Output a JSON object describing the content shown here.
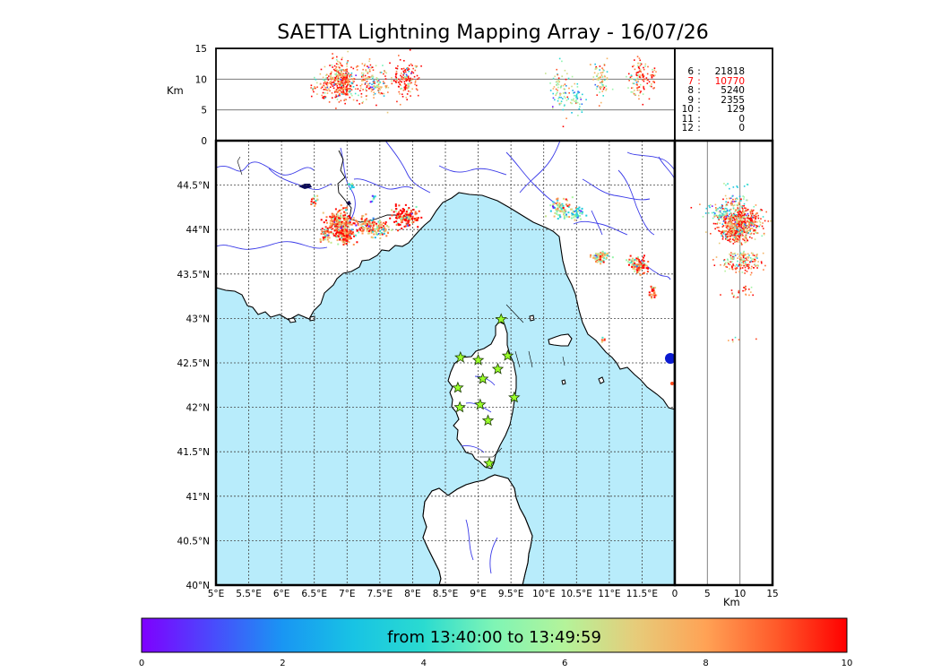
{
  "title": "SAETTA Lightning Mapping Array - 16/07/26",
  "altitude_panel": {
    "unit_label": "Km",
    "y_ticks": [
      "0",
      "5",
      "10",
      "15"
    ],
    "reference_lines_km": [
      5,
      10
    ]
  },
  "map": {
    "lon_ticks": [
      "5°E",
      "5.5°E",
      "6°E",
      "6.5°E",
      "7°E",
      "7.5°E",
      "8°E",
      "8.5°E",
      "9°E",
      "9.5°E",
      "10°E",
      "10.5°E",
      "11°E",
      "11.5°E"
    ],
    "lat_ticks": [
      "40°N",
      "40.5°N",
      "41°N",
      "41.5°N",
      "42°N",
      "42.5°N",
      "43°N",
      "43.5°N",
      "44°N",
      "44.5°N"
    ],
    "extent": {
      "lon_min": 5.0,
      "lon_max": 12.0,
      "lat_min": 40.0,
      "lat_max": 45.0
    },
    "sea_color": "#b8ecfb",
    "river_color": "#3a3ae8",
    "station_color": "#9aff2a",
    "stations": [
      {
        "lon": 9.35,
        "lat": 42.99
      },
      {
        "lon": 8.73,
        "lat": 42.56
      },
      {
        "lon": 9.0,
        "lat": 42.53
      },
      {
        "lon": 9.45,
        "lat": 42.58
      },
      {
        "lon": 9.3,
        "lat": 42.43
      },
      {
        "lon": 9.07,
        "lat": 42.32
      },
      {
        "lon": 8.69,
        "lat": 42.22
      },
      {
        "lon": 9.55,
        "lat": 42.11
      },
      {
        "lon": 8.72,
        "lat": 42.0
      },
      {
        "lon": 9.03,
        "lat": 42.03
      },
      {
        "lon": 9.15,
        "lat": 41.85
      },
      {
        "lon": 9.17,
        "lat": 41.37
      }
    ]
  },
  "side_panel": {
    "unit_label": "Km",
    "x_ticks": [
      "0",
      "5",
      "10",
      "15"
    ]
  },
  "station_counts": [
    {
      "stations": "6",
      "sep": ":",
      "count": "21818",
      "color": "#000000"
    },
    {
      "stations": "7",
      "sep": ":",
      "count": "10770",
      "color": "#ff0000"
    },
    {
      "stations": "8",
      "sep": ":",
      "count": "5240",
      "color": "#000000"
    },
    {
      "stations": "9",
      "sep": ":",
      "count": "2355",
      "color": "#000000"
    },
    {
      "stations": "10",
      "sep": ":",
      "count": "129",
      "color": "#000000"
    },
    {
      "stations": "11",
      "sep": ":",
      "count": "0",
      "color": "#000000"
    },
    {
      "stations": "12",
      "sep": ":",
      "count": "0",
      "color": "#000000"
    }
  ],
  "colorbar": {
    "label": "from 13:40:00 to 13:49:59",
    "ticks": [
      "0",
      "2",
      "4",
      "6",
      "8",
      "10"
    ],
    "range_minutes": [
      0,
      10
    ]
  },
  "lightning_clusters": [
    {
      "lon": 6.88,
      "lat": 44.09,
      "slon": 0.1,
      "slat": 0.06,
      "alt": 10,
      "salt": 1.6,
      "n": 200,
      "t": 8.8
    },
    {
      "lon": 6.95,
      "lat": 43.94,
      "slon": 0.07,
      "slat": 0.05,
      "alt": 9.5,
      "salt": 1.3,
      "n": 140,
      "t": 9.3
    },
    {
      "lon": 6.65,
      "lat": 43.95,
      "slon": 0.05,
      "slat": 0.04,
      "alt": 9,
      "salt": 1.2,
      "n": 40,
      "t": 8.3
    },
    {
      "lon": 7.27,
      "lat": 44.05,
      "slon": 0.08,
      "slat": 0.05,
      "alt": 9.8,
      "salt": 1.5,
      "n": 90,
      "t": 8.4
    },
    {
      "lon": 7.5,
      "lat": 44.02,
      "slon": 0.06,
      "slat": 0.05,
      "alt": 9.2,
      "salt": 1.2,
      "n": 60,
      "t": 6.8
    },
    {
      "lon": 7.88,
      "lat": 44.15,
      "slon": 0.1,
      "slat": 0.05,
      "alt": 10.2,
      "salt": 1.6,
      "n": 150,
      "t": 9.4
    },
    {
      "lon": 6.5,
      "lat": 44.34,
      "slon": 0.03,
      "slat": 0.03,
      "alt": 9,
      "salt": 1,
      "n": 14,
      "t": 8.5
    },
    {
      "lon": 7.05,
      "lat": 44.51,
      "slon": 0.02,
      "slat": 0.03,
      "alt": 9,
      "salt": 1,
      "n": 10,
      "t": 3.5
    },
    {
      "lon": 7.38,
      "lat": 44.37,
      "slon": 0.02,
      "slat": 0.02,
      "alt": 9,
      "salt": 1,
      "n": 8,
      "t": 2.5
    },
    {
      "lon": 10.25,
      "lat": 44.25,
      "slon": 0.07,
      "slat": 0.06,
      "alt": 8.5,
      "salt": 1.8,
      "n": 80,
      "t": 6.5
    },
    {
      "lon": 10.5,
      "lat": 44.2,
      "slon": 0.05,
      "slat": 0.04,
      "alt": 7,
      "salt": 1.5,
      "n": 40,
      "t": 4.5
    },
    {
      "lon": 10.85,
      "lat": 43.7,
      "slon": 0.07,
      "slat": 0.03,
      "alt": 10,
      "salt": 1.4,
      "n": 70,
      "t": 7.2
    },
    {
      "lon": 11.45,
      "lat": 43.6,
      "slon": 0.07,
      "slat": 0.04,
      "alt": 10.5,
      "salt": 1.6,
      "n": 90,
      "t": 9.2
    },
    {
      "lon": 11.65,
      "lat": 43.3,
      "slon": 0.03,
      "slat": 0.03,
      "alt": 10,
      "salt": 1.2,
      "n": 25,
      "t": 9.4
    },
    {
      "lon": 10.9,
      "lat": 42.77,
      "slon": 0.02,
      "slat": 0.01,
      "alt": 10,
      "salt": 1,
      "n": 6,
      "t": 7.5
    },
    {
      "lon": 11.3,
      "lat": 43.65,
      "slon": 0.03,
      "slat": 0.03,
      "alt": 10,
      "salt": 1,
      "n": 10,
      "t": 6.5
    }
  ]
}
